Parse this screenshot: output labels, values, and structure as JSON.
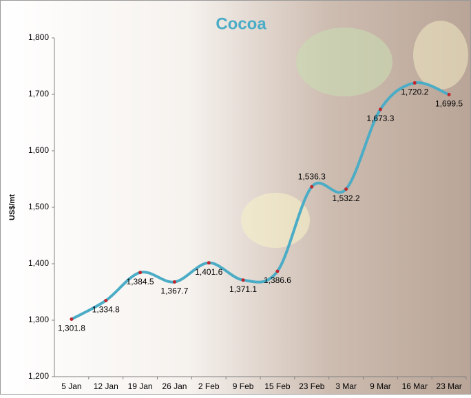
{
  "chart_data": {
    "type": "line",
    "title": "Cocoa",
    "y_label": "US$/mt",
    "categories": [
      "5 Jan",
      "12 Jan",
      "19 Jan",
      "26 Jan",
      "2 Feb",
      "9 Feb",
      "15 Feb",
      "23 Feb",
      "3 Mar",
      "9 Mar",
      "16 Mar",
      "23 Mar"
    ],
    "series": [
      {
        "name": "Cocoa",
        "color": "#4bacc6",
        "marker_color": "#c0272d",
        "values": [
          1301.8,
          1334.8,
          1384.5,
          1367.7,
          1401.6,
          1371.1,
          1386.6,
          1536.3,
          1532.2,
          1673.3,
          1720.2,
          1699.5
        ],
        "value_labels": [
          "1,301.8",
          "1,334.8",
          "1,384.5",
          "1,367.7",
          "1,401.6",
          "1,371.1",
          "1,386.6",
          "1,536.3",
          "1,532.2",
          "1,673.3",
          "1,720.2",
          "1,699.5"
        ]
      }
    ],
    "ylim": [
      1200,
      1800
    ],
    "yticks": [
      {
        "value": 1200,
        "label": "1,200"
      },
      {
        "value": 1300,
        "label": "1,300"
      },
      {
        "value": 1400,
        "label": "1,400"
      },
      {
        "value": 1500,
        "label": "1,500"
      },
      {
        "value": 1600,
        "label": "1,600"
      },
      {
        "value": 1700,
        "label": "1,700"
      },
      {
        "value": 1800,
        "label": "1,800"
      }
    ],
    "grid": false
  }
}
